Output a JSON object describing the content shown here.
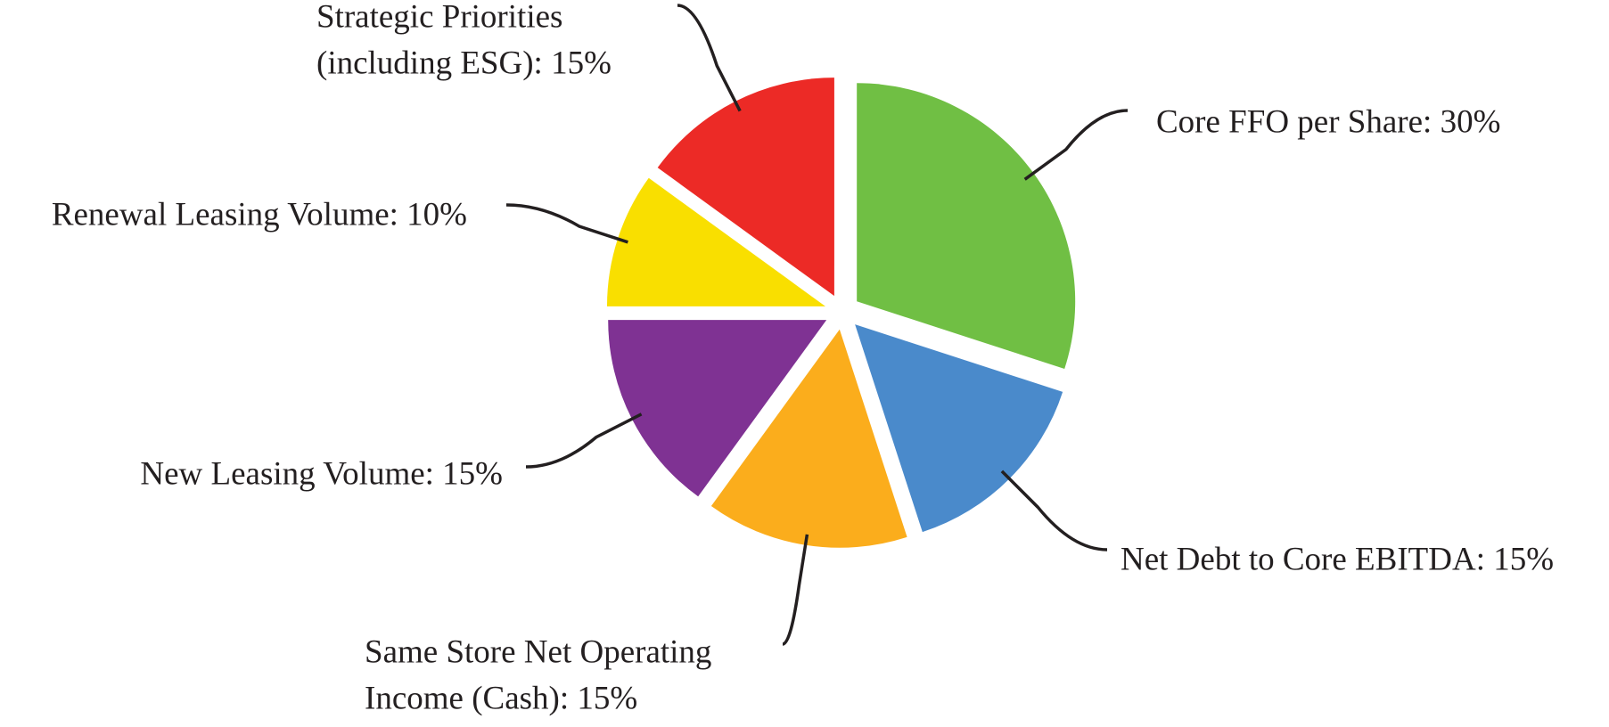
{
  "chart_data": {
    "type": "pie",
    "labels": [
      [
        "Core FFO per Share: 30%"
      ],
      [
        "Net Debt to Core EBITDA: 15%"
      ],
      [
        "Same Store Net Operating",
        "Income (Cash): 15%"
      ],
      [
        "New Leasing Volume: 15%"
      ],
      [
        "Renewal Leasing Volume: 10%"
      ],
      [
        "Strategic Priorities",
        "(including ESG): 15%"
      ]
    ],
    "values": [
      30,
      15,
      15,
      15,
      10,
      15
    ],
    "colors": [
      "#70bf44",
      "#4a8acb",
      "#fbad1c",
      "#7f3293",
      "#f9df00",
      "#ec2a26"
    ]
  }
}
